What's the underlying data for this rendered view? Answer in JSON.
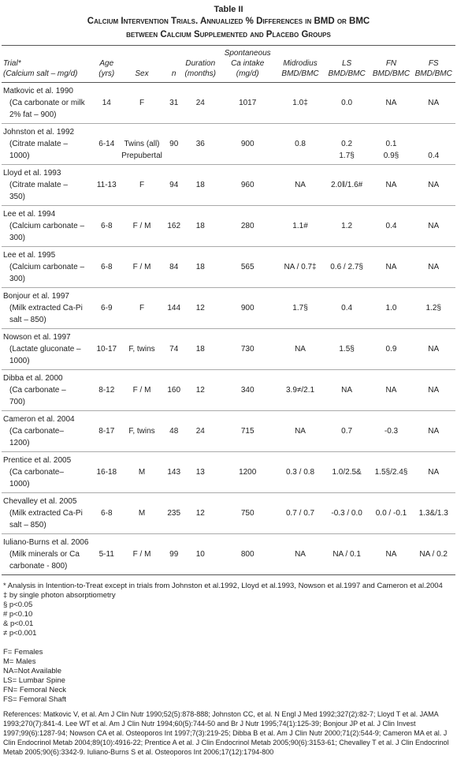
{
  "header": {
    "title": "Table II",
    "subtitle": [
      "Calcium Intervention Trials. Annualized % Differences in BMD or BMC",
      "between Calcium Supplemented and Placebo Groups"
    ]
  },
  "table": {
    "columns": [
      [
        "Trial*",
        "(Calcium salt – mg/d)"
      ],
      [
        "Age",
        "(yrs)"
      ],
      [
        "Sex"
      ],
      [
        "n"
      ],
      [
        "Duration",
        "(months)"
      ],
      [
        "Spontaneous Ca intake",
        "(mg/d)"
      ],
      [
        "Midrodius",
        "BMD/BMC"
      ],
      [
        "LS",
        "BMD/BMC"
      ],
      [
        "FN",
        "BMD/BMC"
      ],
      [
        "FS",
        "BMD/BMC"
      ]
    ],
    "rows": [
      {
        "trial": "Matkovic et al. 1990",
        "salt": [
          "(Ca carbonate or milk",
          "2% fat – 900)"
        ],
        "cells": [
          "14",
          "F",
          "31",
          "24",
          "1017",
          "1.0‡",
          "0.0",
          "NA",
          "NA"
        ]
      },
      {
        "trial": "Johnston et al. 1992",
        "salt": [
          "(Citrate malate –",
          "1000)"
        ],
        "cells": [
          "6-14",
          [
            "Twins (all)",
            "Prepubertal"
          ],
          "90",
          "36",
          "900",
          "0.8",
          [
            "0.2",
            "1.7§"
          ],
          [
            "0.1",
            "0.9§"
          ],
          [
            null,
            "0.4"
          ]
        ]
      },
      {
        "trial": "Lloyd et al. 1993",
        "salt": [
          "(Citrate malate –",
          "350)"
        ],
        "cells": [
          "11-13",
          "F",
          "94",
          "18",
          "960",
          "NA",
          "2.0‖/1.6#",
          "NA",
          "NA"
        ]
      },
      {
        "trial": "Lee et al. 1994",
        "salt": [
          "(Calcium carbonate –",
          "300)"
        ],
        "cells": [
          "6-8",
          "F / M",
          "162",
          "18",
          "280",
          "1.1#",
          "1.2",
          "0.4",
          "NA"
        ]
      },
      {
        "trial": "Lee et al. 1995",
        "salt": [
          "(Calcium carbonate –",
          "300)"
        ],
        "cells": [
          "6-8",
          "F / M",
          "84",
          "18",
          "565",
          "NA / 0.7‡",
          "0.6 / 2.7§",
          "NA",
          "NA"
        ]
      },
      {
        "trial": "Bonjour et al. 1997",
        "salt": [
          "(Milk extracted Ca-Pi",
          "salt – 850)"
        ],
        "cells": [
          "6-9",
          "F",
          "144",
          "12",
          "900",
          "1.7§",
          "0.4",
          "1.0",
          "1.2§"
        ]
      },
      {
        "trial": "Nowson et al. 1997",
        "salt": [
          "(Lactate gluconate –",
          "1000)"
        ],
        "cells": [
          "10-17",
          "F, twins",
          "74",
          "18",
          "730",
          "NA",
          "1.5§",
          "0.9",
          "NA"
        ]
      },
      {
        "trial": "Dibba et al. 2000",
        "salt": [
          "(Ca carbonate –",
          "700)"
        ],
        "cells": [
          "8-12",
          "F / M",
          "160",
          "12",
          "340",
          "3.9≠/2.1",
          "NA",
          "NA",
          "NA"
        ]
      },
      {
        "trial": "Cameron et al. 2004",
        "salt": [
          "(Ca carbonate–",
          "1200)"
        ],
        "cells": [
          "8-17",
          "F, twins",
          "48",
          "24",
          "715",
          "NA",
          "0.7",
          "-0.3",
          "NA"
        ]
      },
      {
        "trial": "Prentice et al. 2005",
        "salt": [
          "(Ca carbonate–",
          "1000)"
        ],
        "cells": [
          "16-18",
          "M",
          "143",
          "13",
          "1200",
          "0.3 / 0.8",
          "1.0/2.5&",
          "1.5§/2.4§",
          "NA"
        ]
      },
      {
        "trial": "Chevalley et al. 2005",
        "salt": [
          "(Milk extracted Ca-Pi",
          "salt – 850)"
        ],
        "cells": [
          "6-8",
          "M",
          "235",
          "12",
          "750",
          "0.7 / 0.7",
          "-0.3 / 0.0",
          "0.0 / -0.1",
          "1.3&/1.3"
        ]
      },
      {
        "trial": "Iuliano-Burns et al. 2006",
        "salt": [
          "(Milk minerals or Ca",
          "carbonate - 800)"
        ],
        "cells": [
          "5-11",
          "F / M",
          "99",
          "10",
          "800",
          "NA",
          "NA / 0.1",
          "NA",
          "NA / 0.2"
        ]
      }
    ]
  },
  "footnotes": [
    "* Analysis in Intention-to-Treat except in trials from Johnston et al.1992, Lloyd et al.1993, Nowson et al.1997 and Cameron et al.2004",
    "‡ by single photon absorptiometry",
    "§ p<0.05",
    "# p<0.10",
    "& p<0.01",
    "≠ p<0.001"
  ],
  "abbreviations": [
    "F= Females",
    "M= Males",
    "NA=Not Available",
    "LS= Lumbar Spine",
    "FN= Femoral Neck",
    "FS= Femoral Shaft"
  ],
  "references": "References: Matkovic V, et al. Am J Clin Nutr 1990;52(5):878-888; Johnston CC, et al. N Engl J Med 1992;327(2):82-7; Lloyd T et al. JAMA 1993;270(7):841-4. Lee WT et al. Am J Clin Nutr 1994;60(5):744-50 and Br J Nutr 1995;74(1):125-39; Bonjour JP et al. J Clin Invest 1997;99(6):1287-94; Nowson CA et al. Osteoporos Int 1997;7(3):219-25; Dibba B et al. Am J Clin Nutr 2000;71(2):544-9; Cameron MA et al. J Clin Endocrinol Metab 2004;89(10):4916-22; Prentice A et al. J Clin Endocrinol Metab 2005;90(6):3153-61; Chevalley T et al. J Clin Endocrinol Metab 2005;90(6):3342-9. Iuliano-Burns S et al. Osteoporos Int 2006;17(12):1794-800"
}
